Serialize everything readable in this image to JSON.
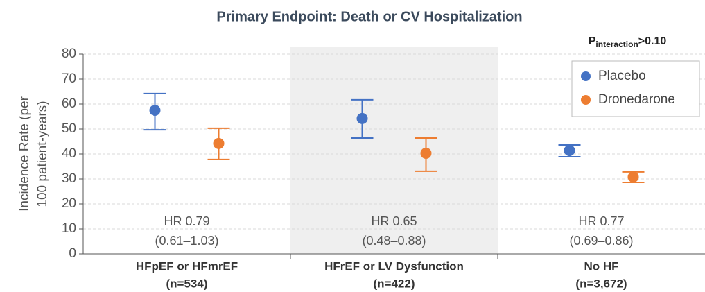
{
  "chart_data": {
    "type": "dot-errorbar",
    "title": "Primary Endpoint: Death or CV Hospitalization",
    "ylabel": [
      "Incidence Rate (per",
      "100 patient-years)"
    ],
    "categories": [
      "HFpEF or HFmrEF",
      "HFrEF or LV Dysfunction",
      "No HF"
    ],
    "category_counts": [
      "(n=534)",
      "(n=422)",
      "(n=3,672)"
    ],
    "shaded_categories": [
      1
    ],
    "series": [
      {
        "name": "Placebo",
        "color": "#4472c4",
        "values": [
          57.5,
          54.2,
          41.4
        ],
        "lower": [
          49.7,
          46.4,
          38.9
        ],
        "upper": [
          64.2,
          61.7,
          43.6
        ]
      },
      {
        "name": "Dronedarone",
        "color": "#ed7d31",
        "values": [
          44.2,
          40.3,
          30.8
        ],
        "lower": [
          37.8,
          33.1,
          28.6
        ],
        "upper": [
          50.3,
          46.4,
          32.8
        ]
      }
    ],
    "annotations": [
      {
        "text": "HR 0.79",
        "ci": "(0.61–1.03)"
      },
      {
        "text": "HR 0.65",
        "ci": "(0.48–0.88)"
      },
      {
        "text": "HR 0.77",
        "ci": "(0.69–0.86)"
      }
    ],
    "p_label": {
      "main": "P",
      "sub": "interaction",
      "rest": ">0.10"
    },
    "ylim": [
      0,
      80
    ],
    "yticks": [
      0,
      10,
      20,
      30,
      40,
      50,
      60,
      70,
      80
    ],
    "grid": true,
    "legend": "upper right"
  }
}
